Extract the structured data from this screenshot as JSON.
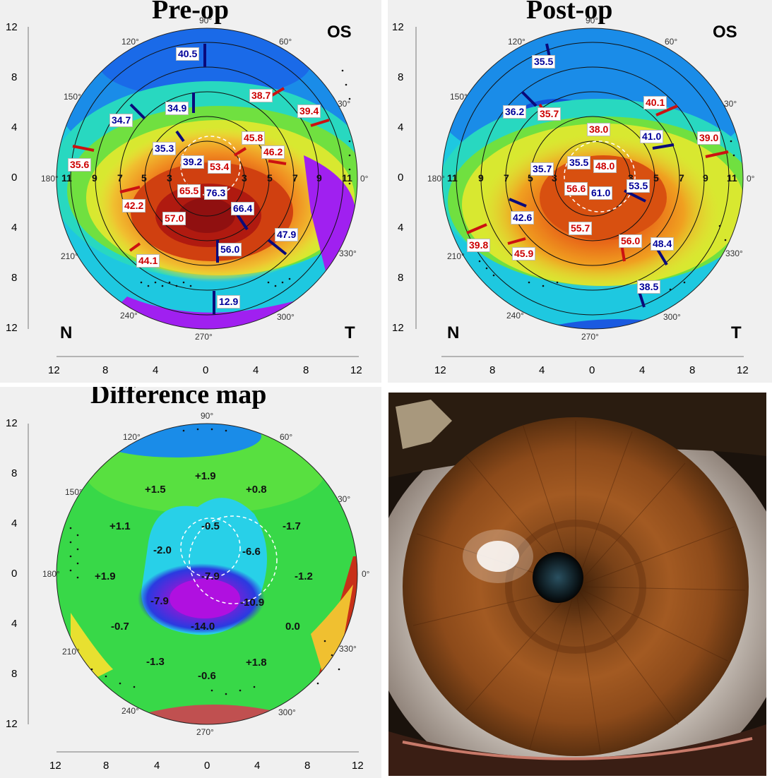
{
  "panels": {
    "preop": {
      "title": "Pre-op",
      "eye": "OS",
      "nasal": "N",
      "temporal": "T",
      "y_ticks": [
        "12",
        "8",
        "4",
        "0",
        "4",
        "8",
        "12"
      ],
      "x_ticks": [
        "12",
        "8",
        "4",
        "0",
        "4",
        "8",
        "12"
      ],
      "angle_labels": {
        "a90": "90°",
        "a60": "60°",
        "a30": "30°",
        "a0": "0°",
        "a330": "330°",
        "a300": "300°",
        "a270": "270°",
        "a240": "240°",
        "a210": "210°",
        "a180": "180°",
        "a150": "150°",
        "a120": "120°"
      },
      "ring_labels": [
        "11",
        "9",
        "7",
        "5",
        "3",
        "3",
        "5",
        "7",
        "9",
        "11"
      ],
      "values_blue": [
        "40.5",
        "34.7",
        "34.9",
        "35.3",
        "39.2",
        "76.3",
        "66.4",
        "56.0",
        "47.9",
        "12.9"
      ],
      "values_red": [
        "38.7",
        "39.4",
        "45.8",
        "46.2",
        "53.4",
        "35.6",
        "42.2",
        "65.5",
        "57.0",
        "44.1"
      ]
    },
    "postop": {
      "title": "Post-op",
      "eye": "OS",
      "nasal": "N",
      "temporal": "T",
      "y_ticks": [
        "12",
        "8",
        "4",
        "0",
        "4",
        "8",
        "12"
      ],
      "x_ticks": [
        "12",
        "8",
        "4",
        "0",
        "4",
        "8",
        "12"
      ],
      "angle_labels": {
        "a90": "90°",
        "a60": "60°",
        "a30": "30°",
        "a0": "0°",
        "a330": "330°",
        "a300": "300°",
        "a270": "270°",
        "a240": "240°",
        "a210": "210°",
        "a180": "180°",
        "a150": "150°",
        "a120": "120°"
      },
      "ring_labels": [
        "11",
        "9",
        "7",
        "5",
        "3",
        "3",
        "5",
        "7",
        "9",
        "11"
      ],
      "values_blue": [
        "35.5",
        "36.2",
        "41.0",
        "35.7",
        "35.5",
        "61.0",
        "53.5",
        "42.6",
        "48.4",
        "38.5"
      ],
      "values_red": [
        "35.7",
        "38.0",
        "40.1",
        "39.0",
        "48.0",
        "56.6",
        "55.7",
        "56.0",
        "39.8",
        "45.9"
      ]
    },
    "difference": {
      "title": "Difference map",
      "y_ticks": [
        "12",
        "8",
        "4",
        "0",
        "4",
        "8",
        "12"
      ],
      "x_ticks": [
        "12",
        "8",
        "4",
        "0",
        "4",
        "8",
        "12"
      ],
      "angle_labels": {
        "a90": "90°",
        "a60": "60°",
        "a30": "30°",
        "a0": "0°",
        "a330": "330°",
        "a300": "300°",
        "a270": "270°",
        "a240": "240°",
        "a210": "210°",
        "a180": "180°",
        "a150": "150°",
        "a120": "120°"
      },
      "values": [
        "+1.9",
        "+1.5",
        "+0.8",
        "+1.1",
        "-0.5",
        "-1.7",
        "-2.0",
        "-6.6",
        "+1.9",
        "-7.9",
        "-1.2",
        "-7.9",
        "-10.9",
        "-0.7",
        "-14.0",
        "0.0",
        "-1.3",
        "+1.8",
        "-0.6"
      ]
    }
  },
  "colors": {
    "panel_bg": "#f0f0f0",
    "label_red": "#cc0000",
    "label_blue": "#000099",
    "marker_red": "#cc1111",
    "marker_blue": "#0a0a7a",
    "purple": "#a020f0",
    "red_orange": "#d83000"
  }
}
